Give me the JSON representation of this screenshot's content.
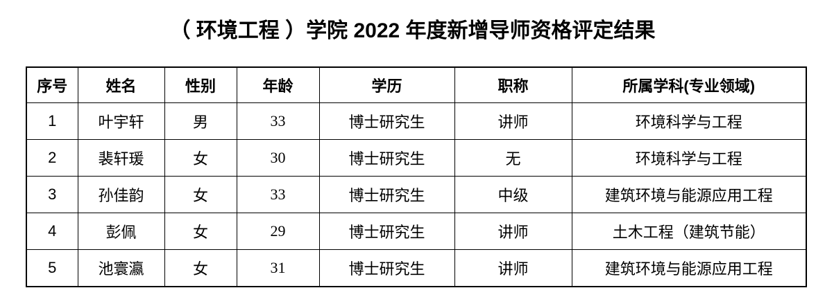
{
  "title": "（ 环境工程 ）学院 2022 年度新增导师资格评定结果",
  "colors": {
    "text": "#000000",
    "border": "#000000",
    "background": "#ffffff"
  },
  "table": {
    "headers": [
      "序号",
      "姓名",
      "性别",
      "年龄",
      "学历",
      "职称",
      "所属学科(专业领域)"
    ],
    "rows": [
      [
        "1",
        "叶宇轩",
        "男",
        "33",
        "博士研究生",
        "讲师",
        "环境科学与工程"
      ],
      [
        "2",
        "裴轩瑗",
        "女",
        "30",
        "博士研究生",
        "无",
        "环境科学与工程"
      ],
      [
        "3",
        "孙佳韵",
        "女",
        "33",
        "博士研究生",
        "中级",
        "建筑环境与能源应用工程"
      ],
      [
        "4",
        "彭佩",
        "女",
        "29",
        "博士研究生",
        "讲师",
        "土木工程（建筑节能）"
      ],
      [
        "5",
        "池寰瀛",
        "女",
        "31",
        "博士研究生",
        "讲师",
        "建筑环境与能源应用工程"
      ]
    ]
  }
}
